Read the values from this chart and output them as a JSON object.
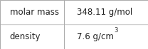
{
  "rows": [
    {
      "label": "molar mass",
      "value": "348.11 g/mol",
      "superscript": null
    },
    {
      "label": "density",
      "value": "7.6 g/cm",
      "superscript": "3"
    }
  ],
  "background_color": "#ffffff",
  "border_color": "#aaaaaa",
  "label_fontsize": 8.5,
  "value_fontsize": 8.5,
  "sup_fontsize": 6.0,
  "text_color": "#222222",
  "fig_width": 2.08,
  "fig_height": 0.7,
  "col_split": 0.435
}
